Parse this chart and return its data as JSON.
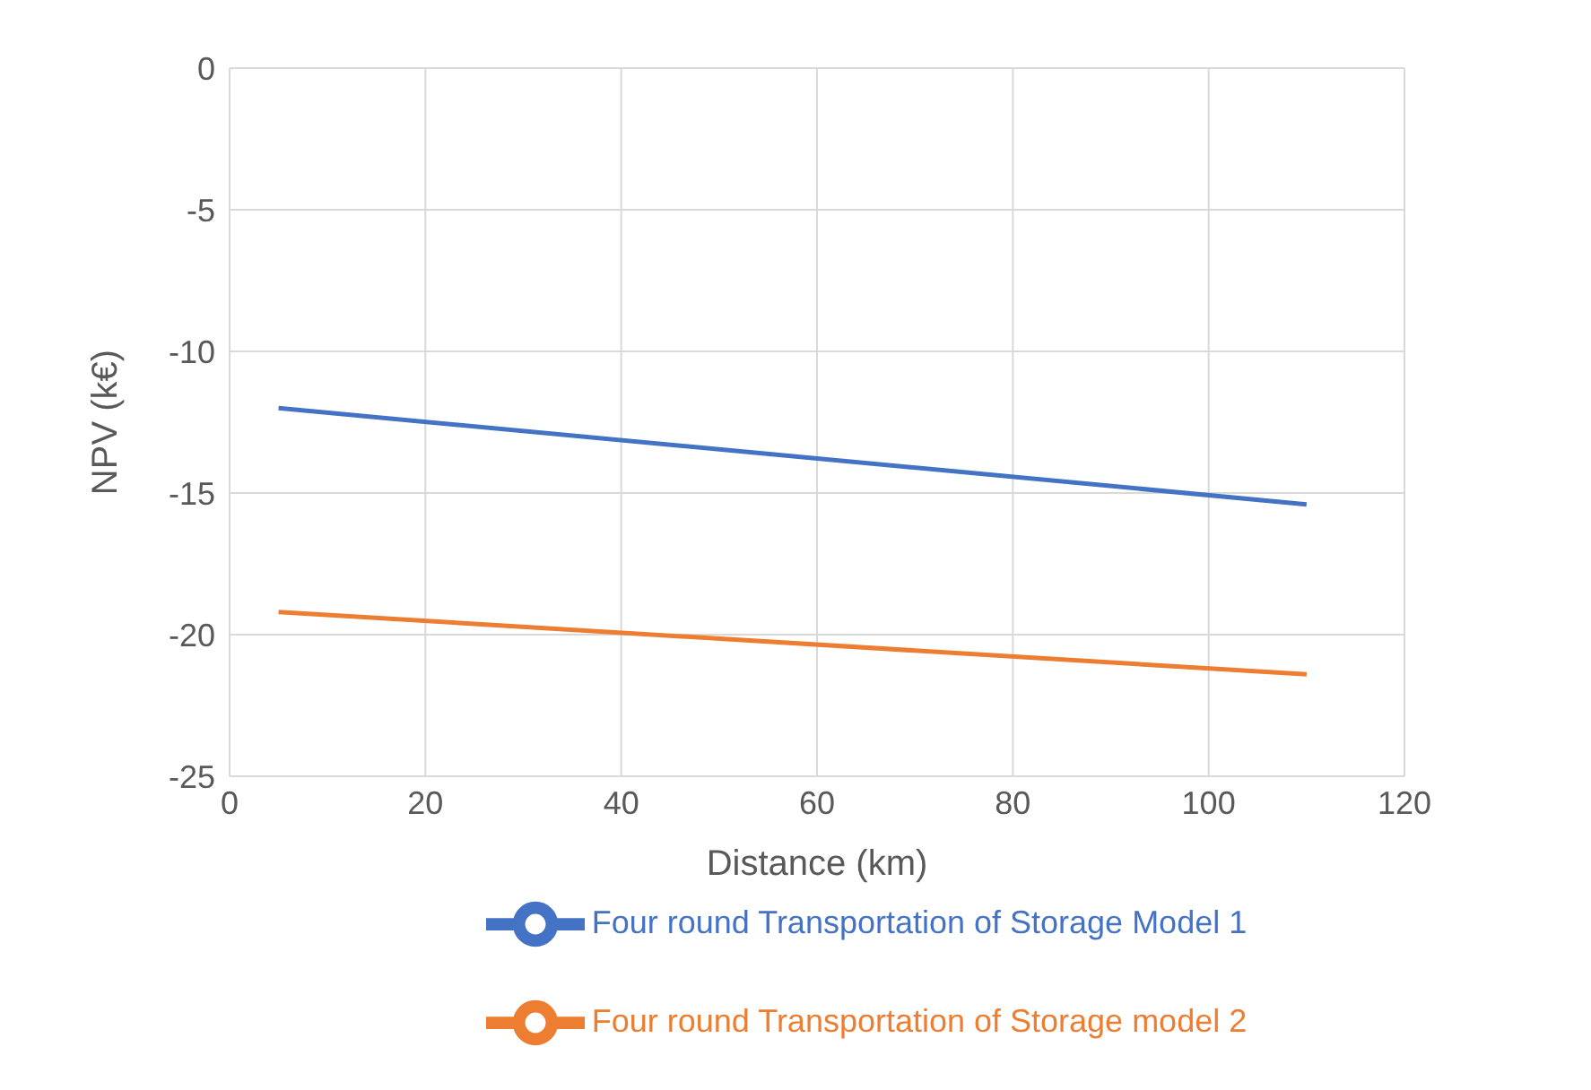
{
  "chart_data": {
    "type": "line",
    "xlabel": "Distance (km)",
    "ylabel": "NPV (k€)",
    "x": [
      5,
      110
    ],
    "series": [
      {
        "name": "Four round Transportation of Storage Model 1",
        "color": "#4472c4",
        "values": [
          -12.0,
          -15.4
        ]
      },
      {
        "name": "Four round Transportation of Storage model 2",
        "color": "#ed7d31",
        "values": [
          -19.2,
          -21.4
        ]
      }
    ],
    "xlim": [
      0,
      120
    ],
    "xticks": [
      0,
      20,
      40,
      60,
      80,
      100,
      120
    ],
    "ylim": [
      -25,
      0
    ],
    "yticks": [
      -25,
      -20,
      -15,
      -10,
      -5,
      0
    ],
    "grid": true,
    "legend": "bottom",
    "marker": "none",
    "line_style": "solid"
  }
}
